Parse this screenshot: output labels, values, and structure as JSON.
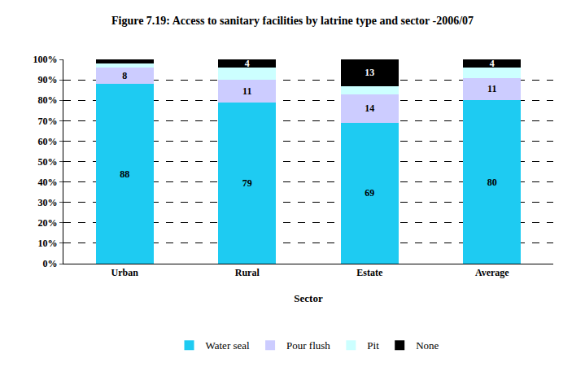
{
  "chart_data": {
    "type": "bar",
    "stacked": true,
    "title": "Figure 7.19: Access to sanitary facilities by latrine type and sector -2006/07",
    "x_label": "Sector",
    "categories": [
      "Urban",
      "Rural",
      "Estate",
      "Average"
    ],
    "series": [
      {
        "name": "Water seal",
        "color": "#1ecbf2",
        "values": [
          88,
          79,
          69,
          80
        ],
        "value_labels": [
          "88",
          "79",
          "69",
          "80"
        ]
      },
      {
        "name": "Pour flush",
        "color": "#ccccff",
        "values": [
          8,
          11,
          14,
          11
        ],
        "value_labels": [
          "8",
          "11",
          "14",
          "11"
        ]
      },
      {
        "name": "Pit",
        "color": "#ccffff",
        "values": [
          2,
          6,
          4,
          5
        ],
        "value_labels": [
          null,
          null,
          null,
          null
        ]
      },
      {
        "name": "None",
        "color": "#000000",
        "values": [
          2,
          4,
          13,
          4
        ],
        "value_labels": [
          null,
          "4",
          "13",
          "4"
        ]
      }
    ],
    "ylim": [
      0,
      100
    ],
    "yticks": [
      {
        "value": 0,
        "label": "0%"
      },
      {
        "value": 10,
        "label": "10%"
      },
      {
        "value": 20,
        "label": "20%"
      },
      {
        "value": 30,
        "label": "30%"
      },
      {
        "value": 40,
        "label": "40%"
      },
      {
        "value": 50,
        "label": "50%"
      },
      {
        "value": 60,
        "label": "60%"
      },
      {
        "value": 70,
        "label": "70%"
      },
      {
        "value": 80,
        "label": "80%"
      },
      {
        "value": 90,
        "label": "90%"
      },
      {
        "value": 100,
        "label": "100%"
      }
    ],
    "grid": true,
    "data_labels": true,
    "legend": "bottom"
  }
}
